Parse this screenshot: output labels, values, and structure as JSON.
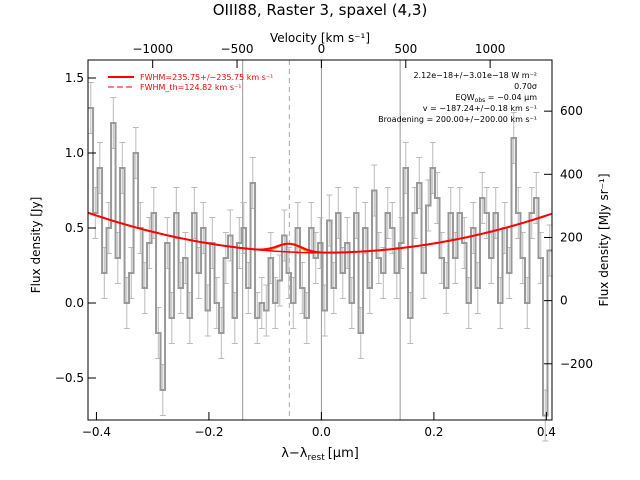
{
  "chart_data": {
    "type": "line",
    "title": "OIII88, Raster 3, spaxel (4,3)",
    "xlabel": "λ−λ",
    "xlabel_sub": "rest",
    "xlabel_unit": "[μm]",
    "ylabel_left": "Flux density [Jy]",
    "ylabel_right": "Flux density [MJy sr⁻¹]",
    "xlabel_top": "Velocity [km s⁻¹]",
    "xlim": [
      -0.415,
      0.41
    ],
    "ylim_left": [
      -0.78,
      1.62
    ],
    "ylim_right": [
      -378,
      762
    ],
    "x_ticks": [
      -0.4,
      -0.2,
      0.0,
      0.2,
      0.4
    ],
    "x_tick_labels": [
      "−0.4",
      "−0.2",
      "0.0",
      "0.2",
      "0.4"
    ],
    "y_ticks": [
      -0.5,
      0.0,
      0.5,
      1.0,
      1.5
    ],
    "y_tick_labels": [
      "−0.5",
      "0.0",
      "0.5",
      "1.0",
      "1.5"
    ],
    "yr_ticks": [
      -200,
      0,
      200,
      400,
      600
    ],
    "yr_tick_labels": [
      "−200",
      "0",
      "200",
      "400",
      "600"
    ],
    "top_ticks": [
      -1000,
      -500,
      0,
      500,
      1000
    ],
    "top_tick_labels": [
      "−1000",
      "−500",
      "0",
      "500",
      "1000"
    ],
    "top_tick_x": [
      -0.3,
      -0.15,
      0.0,
      0.15,
      0.3
    ],
    "vlines_solid": [
      -0.14,
      0.0,
      0.14
    ],
    "vline_dashed": -0.057,
    "series": [
      {
        "name": "spectrum",
        "color": "#999999",
        "x": [
          -0.41,
          -0.402,
          -0.394,
          -0.386,
          -0.378,
          -0.37,
          -0.362,
          -0.354,
          -0.346,
          -0.338,
          -0.33,
          -0.322,
          -0.314,
          -0.306,
          -0.298,
          -0.29,
          -0.282,
          -0.274,
          -0.266,
          -0.258,
          -0.25,
          -0.242,
          -0.234,
          -0.226,
          -0.218,
          -0.21,
          -0.202,
          -0.194,
          -0.186,
          -0.178,
          -0.17,
          -0.162,
          -0.154,
          -0.146,
          -0.138,
          -0.13,
          -0.122,
          -0.114,
          -0.106,
          -0.098,
          -0.09,
          -0.082,
          -0.074,
          -0.066,
          -0.058,
          -0.05,
          -0.042,
          -0.034,
          -0.026,
          -0.018,
          -0.01,
          -0.002,
          0.006,
          0.014,
          0.022,
          0.03,
          0.038,
          0.046,
          0.054,
          0.062,
          0.07,
          0.078,
          0.086,
          0.094,
          0.102,
          0.11,
          0.118,
          0.126,
          0.134,
          0.142,
          0.15,
          0.158,
          0.166,
          0.174,
          0.182,
          0.19,
          0.198,
          0.206,
          0.214,
          0.222,
          0.23,
          0.238,
          0.246,
          0.254,
          0.262,
          0.27,
          0.278,
          0.286,
          0.294,
          0.302,
          0.31,
          0.318,
          0.326,
          0.334,
          0.342,
          0.35,
          0.358,
          0.366,
          0.374,
          0.382,
          0.39,
          0.398,
          0.406
        ],
        "y": [
          1.3,
          0.6,
          0.9,
          0.2,
          0.5,
          1.2,
          0.3,
          0.9,
          0.0,
          0.2,
          1.0,
          0.5,
          0.1,
          0.4,
          0.6,
          -0.2,
          -0.58,
          0.4,
          -0.1,
          0.6,
          0.1,
          0.3,
          -0.1,
          0.6,
          0.2,
          0.5,
          -0.05,
          0.4,
          0.0,
          -0.2,
          0.3,
          0.45,
          -0.1,
          0.4,
          0.5,
          0.1,
          0.8,
          -0.1,
          0.0,
          -0.05,
          0.3,
          0.0,
          0.15,
          0.45,
          0.2,
          0.0,
          0.5,
          0.1,
          -0.1,
          0.5,
          0.3,
          0.4,
          -0.05,
          0.55,
          0.1,
          0.6,
          0.2,
          0.4,
          0.0,
          0.6,
          -0.2,
          0.5,
          0.1,
          0.75,
          0.3,
          0.2,
          0.6,
          0.5,
          0.2,
          0.4,
          0.9,
          -0.1,
          0.6,
          0.8,
          0.2,
          0.65,
          0.9,
          0.7,
          0.3,
          0.1,
          0.6,
          0.3,
          0.6,
          0.4,
          0.0,
          0.5,
          0.1,
          0.7,
          0.6,
          0.3,
          0.6,
          0.0,
          0.5,
          0.2,
          1.1,
          0.6,
          0.3,
          0.0,
          0.6,
          0.7,
          0.3,
          -0.75,
          0.35
        ],
        "err": 0.17
      },
      {
        "name": "fit",
        "color": "#ff0000",
        "baseline_coeffs": [
          0.335,
          0.0,
          1.55
        ],
        "gauss": {
          "center": -0.057,
          "amp": 0.055,
          "sigma": 0.022
        }
      },
      {
        "name": "fit_th",
        "color": "#ff8c00"
      }
    ],
    "legend": {
      "position": "top-left",
      "entries": [
        {
          "label": "FWHM=235.75+/−235.75 km s⁻¹",
          "color": "#ff0000",
          "dash": false
        },
        {
          "label": "FWHM_th=124.82 km s⁻¹",
          "color": "#ff0000",
          "dash": true
        }
      ]
    },
    "annotations": [
      "2.12e−18+/−3.01e−18 W m⁻²",
      "0.70σ",
      "EQW",
      "obs",
      " = −0.04 μm",
      "v = −187.24+/−0.18 km s⁻¹",
      "Broadening = 200.00+/−200.00 km s⁻¹"
    ]
  }
}
